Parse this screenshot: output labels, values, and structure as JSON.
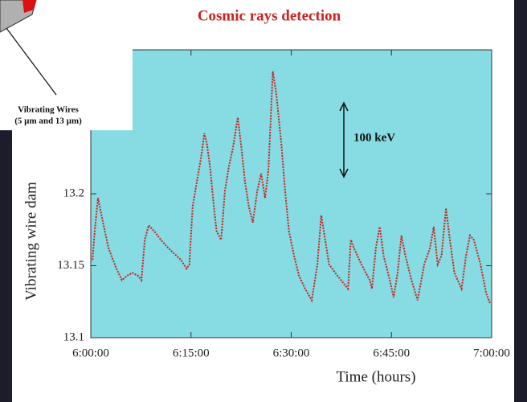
{
  "chart_data": {
    "type": "line",
    "title": "Cosmic rays detection",
    "y_label": "Vibrating wire dam",
    "x_label": "Time (hours)",
    "annotation": "100 keV",
    "color": "#cc1f1a",
    "background": "#86dce2",
    "xlim": [
      "6:00:00",
      "7:00:00"
    ],
    "xticks": [
      "6:00:00",
      "6:15:00",
      "6:30:00",
      "6:45:00",
      "7:00:00"
    ],
    "ylim": [
      13.1,
      13.3
    ],
    "yticks": [
      13.1,
      13.15,
      13.2
    ],
    "x": [
      "6:00:15",
      "6:00:35",
      "6:01:05",
      "6:01:50",
      "6:02:40",
      "6:03:50",
      "6:04:40",
      "6:05:25",
      "6:06:15",
      "6:07:05",
      "6:07:35",
      "6:08:05",
      "6:08:40",
      "6:09:30",
      "6:10:30",
      "6:11:40",
      "6:13:30",
      "6:14:20",
      "6:14:45",
      "6:15:15",
      "6:15:45",
      "6:16:30",
      "6:17:00",
      "6:17:25",
      "6:17:55",
      "6:18:25",
      "6:18:50",
      "6:19:30",
      "6:20:05",
      "6:20:40",
      "6:21:15",
      "6:22:00",
      "6:22:30",
      "6:23:05",
      "6:23:40",
      "6:24:15",
      "6:24:55",
      "6:25:30",
      "6:26:05",
      "6:26:35",
      "6:27:15",
      "6:27:45",
      "6:28:30",
      "6:29:05",
      "6:29:40",
      "6:30:25",
      "6:31:10",
      "6:32:05",
      "6:33:05",
      "6:33:55",
      "6:34:30",
      "6:35:05",
      "6:35:40",
      "6:36:55",
      "6:38:30",
      "6:38:55",
      "6:39:25",
      "6:40:30",
      "6:41:45",
      "6:42:05",
      "6:42:40",
      "6:43:15",
      "6:43:50",
      "6:44:45",
      "6:45:20",
      "6:45:55",
      "6:46:30",
      "6:47:05",
      "6:48:00",
      "6:48:55",
      "6:49:55",
      "6:50:45",
      "6:51:20",
      "6:51:55",
      "6:52:30",
      "6:53:10",
      "6:53:45",
      "6:54:25",
      "6:55:30",
      "6:56:10",
      "6:56:45",
      "6:57:20",
      "6:58:20",
      "6:59:10",
      "6:59:45"
    ],
    "values": [
      13.154,
      13.174,
      13.197,
      13.18,
      13.162,
      13.148,
      13.14,
      13.143,
      13.145,
      13.143,
      13.14,
      13.168,
      13.178,
      13.174,
      13.168,
      13.162,
      13.154,
      13.148,
      13.151,
      13.191,
      13.205,
      13.225,
      13.242,
      13.234,
      13.216,
      13.191,
      13.174,
      13.168,
      13.202,
      13.219,
      13.231,
      13.253,
      13.234,
      13.208,
      13.191,
      13.18,
      13.202,
      13.214,
      13.197,
      13.216,
      13.285,
      13.27,
      13.236,
      13.202,
      13.174,
      13.157,
      13.143,
      13.134,
      13.126,
      13.151,
      13.185,
      13.168,
      13.151,
      13.143,
      13.134,
      13.168,
      13.162,
      13.151,
      13.14,
      13.134,
      13.162,
      13.177,
      13.157,
      13.14,
      13.128,
      13.145,
      13.171,
      13.157,
      13.14,
      13.126,
      13.151,
      13.162,
      13.177,
      13.151,
      13.157,
      13.19,
      13.168,
      13.145,
      13.134,
      13.157,
      13.171,
      13.168,
      13.151,
      13.131,
      13.124
    ]
  },
  "inset": {
    "lines": [
      "Vibrating Wires",
      "(5 µm and 13 µm)"
    ]
  }
}
